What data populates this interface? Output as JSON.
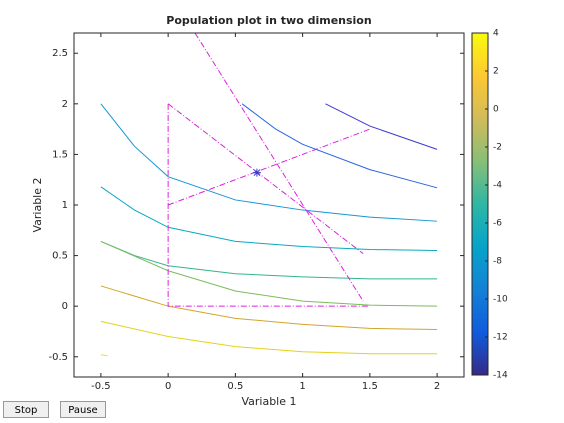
{
  "chart_data": {
    "type": "contour",
    "title": "Population plot in two dimension",
    "xlabel": "Variable  1",
    "ylabel": "Variable  2",
    "xlim": [
      -0.7,
      2.2
    ],
    "ylim": [
      -0.7,
      2.7
    ],
    "xticks": [
      -0.5,
      0,
      0.5,
      1,
      1.5,
      2
    ],
    "yticks": [
      -0.5,
      0,
      0.5,
      1,
      1.5,
      2,
      2.5
    ],
    "series": [
      {
        "color": "#3b3bcf",
        "x": [
          1.17,
          1.5,
          2
        ],
        "y": [
          2.0,
          1.78,
          1.55
        ]
      },
      {
        "color": "#2a64e0",
        "x": [
          0.55,
          0.8,
          1,
          1.5,
          2
        ],
        "y": [
          2.0,
          1.75,
          1.6,
          1.35,
          1.17
        ]
      },
      {
        "color": "#1596d6",
        "x": [
          -0.5,
          -0.25,
          0,
          0.5,
          1,
          1.5,
          2
        ],
        "y": [
          2.0,
          1.58,
          1.28,
          1.05,
          0.95,
          0.88,
          0.84
        ]
      },
      {
        "color": "#0aa9bf",
        "x": [
          -0.5,
          -0.25,
          0,
          0.5,
          1,
          1.5,
          2
        ],
        "y": [
          1.18,
          0.95,
          0.78,
          0.64,
          0.59,
          0.56,
          0.55
        ]
      },
      {
        "color": "#33b48f",
        "x": [
          -0.5,
          -0.25,
          0,
          0.5,
          1,
          1.5,
          2
        ],
        "y": [
          0.64,
          0.5,
          0.4,
          0.32,
          0.29,
          0.27,
          0.27
        ]
      },
      {
        "color": "#7cbc5a",
        "x": [
          -0.5,
          0,
          0.5,
          1,
          1.5,
          2
        ],
        "y": [
          0.64,
          0.35,
          0.15,
          0.05,
          0.01,
          0.0
        ]
      },
      {
        "color": "#d1a52c",
        "x": [
          -0.5,
          0,
          0.5,
          1,
          1.5,
          2
        ],
        "y": [
          0.2,
          0.0,
          -0.12,
          -0.18,
          -0.22,
          -0.23
        ]
      },
      {
        "color": "#e6d21a",
        "x": [
          -0.5,
          0,
          0.5,
          1,
          1.5,
          2
        ],
        "y": [
          -0.15,
          -0.3,
          -0.4,
          -0.45,
          -0.47,
          -0.47
        ]
      },
      {
        "color": "#f0e020",
        "x": [
          -0.5,
          -0.45
        ],
        "y": [
          -0.48,
          -0.49
        ]
      }
    ],
    "lines": {
      "color": "#dd22dd",
      "items": [
        {
          "x": [
            0,
            0,
            1.5
          ],
          "y": [
            2.0,
            0,
            0
          ]
        },
        {
          "x": [
            0,
            1.45
          ],
          "y": [
            2.0,
            0.52
          ]
        },
        {
          "x": [
            0,
            1.5
          ],
          "y": [
            1.0,
            1.75
          ]
        },
        {
          "x": [
            0.2,
            1.45
          ],
          "y": [
            2.7,
            0.05
          ]
        }
      ]
    },
    "points": {
      "color": "#3b3bcf",
      "x": [
        0.66
      ],
      "y": [
        1.32
      ]
    },
    "clim": [
      -14,
      4
    ],
    "cticks": [
      4,
      2,
      0,
      -2,
      -4,
      -6,
      -8,
      -10,
      -12,
      -14
    ],
    "colormap": [
      "#352a87",
      "#0f5cdd",
      "#1481d6",
      "#06a4ca",
      "#2eb7a4",
      "#87bf77",
      "#d1bb59",
      "#fec832",
      "#f9fb0e"
    ]
  },
  "controls": [
    "Stop",
    "Pause"
  ]
}
